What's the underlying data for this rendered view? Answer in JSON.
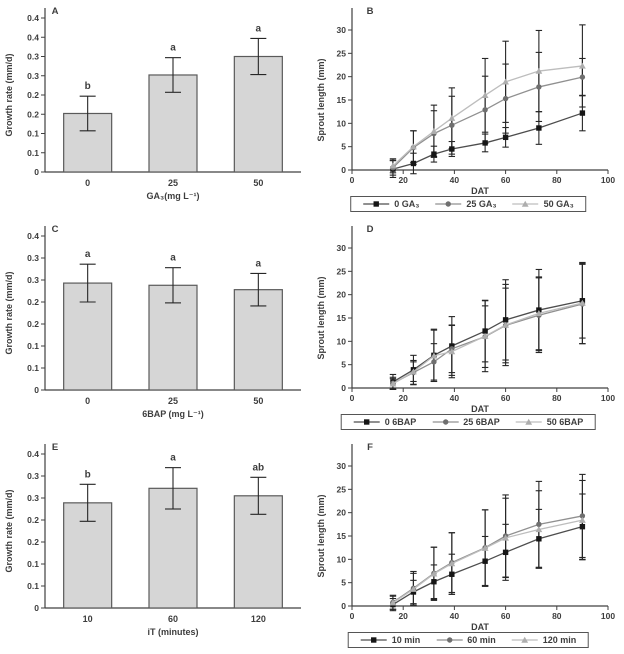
{
  "figure": {
    "background": "#ffffff"
  },
  "style": {
    "axis_color": "#404040",
    "text_color": "#3d3d3d",
    "bar_fill": "#d6d6d6",
    "bar_stroke": "#5a5a5a",
    "error_color": "#262626"
  },
  "chart_data": [
    {
      "id": "A",
      "type": "bar",
      "panel_label": "A",
      "ylabel": "Growth rate (mm/d)",
      "xlabel": "GA₃(mg L⁻¹)",
      "categories": [
        "0",
        "25",
        "50"
      ],
      "values": [
        0.152,
        0.252,
        0.3
      ],
      "errors": [
        0.045,
        0.045,
        0.047
      ],
      "sig_letters": [
        "b",
        "a",
        "a"
      ],
      "ylim": [
        0,
        0.4
      ],
      "ytick_values": [
        0,
        0.05,
        0.1,
        0.15,
        0.2,
        0.25,
        0.3,
        0.35,
        0.4
      ],
      "ytick_labels": [
        "0",
        "0.1",
        "0.1",
        "0.2",
        "0.2",
        "0.3",
        "0.3",
        "0.4",
        "0.4"
      ]
    },
    {
      "id": "B",
      "type": "line",
      "panel_label": "B",
      "ylabel": "Sprout length (mm)",
      "xlabel": "DAT",
      "xlim": [
        0,
        100
      ],
      "xticks": [
        0,
        20,
        40,
        60,
        80,
        100
      ],
      "ylim": [
        0,
        30
      ],
      "yticks": [
        0,
        5,
        10,
        15,
        20,
        25,
        30
      ],
      "x": [
        16,
        24,
        32,
        39,
        52,
        60,
        73,
        90
      ],
      "series": [
        {
          "name": "0 GA₃",
          "marker": "square",
          "marker_color": "#161616",
          "line_color": "#4d4d4d",
          "values": [
            0.2,
            1.4,
            3.4,
            4.5,
            5.8,
            7.0,
            9.0,
            12.2
          ],
          "errors": [
            1.8,
            2.2,
            1.7,
            1.6,
            1.9,
            2.1,
            3.5,
            3.8
          ]
        },
        {
          "name": "25 GA₃",
          "marker": "circle",
          "marker_color": "#6f6f6f",
          "line_color": "#909090",
          "values": [
            0.5,
            4.8,
            7.8,
            9.6,
            12.9,
            15.3,
            17.8,
            19.9
          ],
          "errors": [
            1.6,
            3.6,
            4.9,
            6.2,
            7.2,
            7.4,
            7.4,
            4.0
          ]
        },
        {
          "name": "50 GA₃",
          "marker": "triangle",
          "marker_color": "#aeaeae",
          "line_color": "#bdbdbd",
          "values": [
            0.9,
            5.0,
            8.3,
            11.1,
            16.0,
            18.9,
            21.2,
            22.3
          ],
          "errors": [
            1.5,
            3.4,
            5.6,
            6.5,
            7.9,
            8.7,
            8.7,
            8.8
          ]
        }
      ]
    },
    {
      "id": "C",
      "type": "bar",
      "panel_label": "C",
      "ylabel": "Growth rate (mm/d)",
      "xlabel": "6BAP (mg L⁻¹)",
      "categories": [
        "0",
        "25",
        "50"
      ],
      "values": [
        0.243,
        0.238,
        0.228
      ],
      "errors": [
        0.043,
        0.04,
        0.037
      ],
      "sig_letters": [
        "a",
        "a",
        "a"
      ],
      "ylim": [
        0,
        0.35
      ],
      "ytick_values": [
        0,
        0.05,
        0.1,
        0.15,
        0.2,
        0.25,
        0.3,
        0.35
      ],
      "ytick_labels": [
        "0",
        "0.1",
        "0.1",
        "0.2",
        "0.2",
        "0.3",
        "0.3",
        "0.4"
      ]
    },
    {
      "id": "D",
      "type": "line",
      "panel_label": "D",
      "ylabel": "Sprout length (mm)",
      "xlabel": "DAT",
      "xlim": [
        0,
        100
      ],
      "xticks": [
        0,
        20,
        40,
        60,
        80,
        100
      ],
      "ylim": [
        0,
        30
      ],
      "yticks": [
        0,
        5,
        10,
        15,
        20,
        25,
        30
      ],
      "x": [
        16,
        24,
        32,
        39,
        52,
        60,
        73,
        90
      ],
      "series": [
        {
          "name": "0 6BAP",
          "marker": "square",
          "marker_color": "#161616",
          "line_color": "#4d4d4d",
          "values": [
            1.3,
            3.9,
            7.0,
            9.0,
            12.2,
            14.6,
            16.7,
            18.7
          ],
          "errors": [
            1.6,
            3.1,
            5.6,
            6.3,
            6.6,
            8.6,
            8.7,
            8.0
          ]
        },
        {
          "name": "25 6BAP",
          "marker": "circle",
          "marker_color": "#6f6f6f",
          "line_color": "#909090",
          "values": [
            1.0,
            3.3,
            5.6,
            8.4,
            11.0,
            13.4,
            15.6,
            18.0
          ],
          "errors": [
            1.3,
            2.6,
            3.9,
            5.1,
            6.6,
            8.0,
            8.0,
            8.5
          ]
        },
        {
          "name": "50 6BAP",
          "marker": "triangle",
          "marker_color": "#aeaeae",
          "line_color": "#bdbdbd",
          "values": [
            0.9,
            3.5,
            6.9,
            7.8,
            11.1,
            13.5,
            16.0,
            18.2
          ],
          "errors": [
            1.1,
            2.1,
            5.5,
            5.6,
            7.6,
            8.7,
            7.8,
            8.7
          ]
        }
      ]
    },
    {
      "id": "E",
      "type": "bar",
      "panel_label": "E",
      "ylabel": "Growth rate (mm/d)",
      "xlabel": "iT (minutes)",
      "categories": [
        "10",
        "60",
        "120"
      ],
      "values": [
        0.239,
        0.272,
        0.255
      ],
      "errors": [
        0.042,
        0.047,
        0.042
      ],
      "sig_letters": [
        "b",
        "a",
        "ab"
      ],
      "ylim": [
        0,
        0.35
      ],
      "ytick_values": [
        0,
        0.05,
        0.1,
        0.15,
        0.2,
        0.25,
        0.3,
        0.35
      ],
      "ytick_labels": [
        "0",
        "0.1",
        "0.1",
        "0.2",
        "0.2",
        "0.3",
        "0.3",
        "0.4"
      ]
    },
    {
      "id": "F",
      "type": "line",
      "panel_label": "F",
      "ylabel": "Sprout length (mm)",
      "xlabel": "DAT",
      "xlim": [
        0,
        100
      ],
      "xticks": [
        0,
        20,
        40,
        60,
        80,
        100
      ],
      "ylim": [
        0,
        30
      ],
      "yticks": [
        0,
        5,
        10,
        15,
        20,
        25,
        30
      ],
      "x": [
        16,
        24,
        32,
        39,
        52,
        60,
        73,
        90
      ],
      "series": [
        {
          "name": "10 min",
          "marker": "square",
          "marker_color": "#161616",
          "line_color": "#4d4d4d",
          "values": [
            0.3,
            3.0,
            5.2,
            6.8,
            9.6,
            11.5,
            14.4,
            17.0
          ],
          "errors": [
            1.3,
            2.5,
            3.6,
            4.3,
            5.3,
            6.0,
            6.3,
            7.0
          ]
        },
        {
          "name": "60 min",
          "marker": "circle",
          "marker_color": "#6f6f6f",
          "line_color": "#909090",
          "values": [
            0.8,
            3.8,
            7.0,
            9.3,
            12.5,
            15.0,
            17.5,
            19.3
          ],
          "errors": [
            1.5,
            3.6,
            5.6,
            6.4,
            8.1,
            8.8,
            9.2,
            8.9
          ]
        },
        {
          "name": "120 min",
          "marker": "triangle",
          "marker_color": "#aeaeae",
          "line_color": "#bdbdbd",
          "values": [
            0.7,
            3.6,
            6.9,
            9.1,
            12.4,
            14.6,
            16.4,
            18.4
          ],
          "errors": [
            1.4,
            3.4,
            5.7,
            6.6,
            8.2,
            8.5,
            8.3,
            8.5
          ]
        }
      ]
    }
  ]
}
